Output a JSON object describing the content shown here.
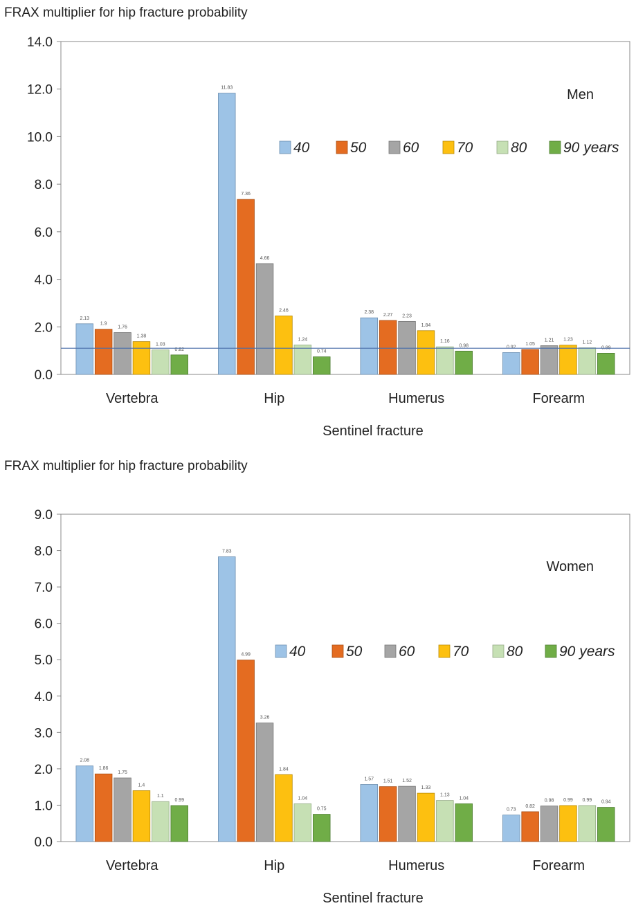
{
  "chart_data": [
    {
      "type": "bar",
      "title": "FRAX multiplier for hip fracture probability",
      "panel_label": "Men",
      "xlabel": "Sentinel fracture",
      "ylabel": "",
      "ylim": [
        0,
        14
      ],
      "yticks": [
        "0.0",
        "2.0",
        "4.0",
        "6.0",
        "8.0",
        "10.0",
        "12.0",
        "14.0"
      ],
      "reference_line": 1.1,
      "categories": [
        "Vertebra",
        "Hip",
        "Humerus",
        "Forearm"
      ],
      "series": [
        {
          "name": "40",
          "values": [
            2.13,
            11.83,
            2.38,
            0.92
          ]
        },
        {
          "name": "50",
          "values": [
            1.9,
            7.36,
            2.27,
            1.05
          ]
        },
        {
          "name": "60",
          "values": [
            1.76,
            4.66,
            2.23,
            1.21
          ]
        },
        {
          "name": "70",
          "values": [
            1.38,
            2.46,
            1.84,
            1.23
          ]
        },
        {
          "name": "80",
          "values": [
            1.03,
            1.24,
            1.16,
            1.12
          ]
        },
        {
          "name": "90 years",
          "values": [
            0.82,
            0.74,
            0.98,
            0.89
          ]
        }
      ],
      "data_labels": [
        [
          "2.13",
          "1.9",
          "1.76",
          "1.38",
          "1.03",
          "0.82"
        ],
        [
          "11.83",
          "7.36",
          "4.66",
          "2.46",
          "1.24",
          "0.74"
        ],
        [
          "2.38",
          "2.27",
          "2.23",
          "1.84",
          "1.16",
          "0.98"
        ],
        [
          "0.92",
          "1.05",
          "1.21",
          "1.23",
          "1.12",
          "0.89"
        ]
      ],
      "legend": {
        "placement": "upper-right"
      },
      "grid": false
    },
    {
      "type": "bar",
      "title": "FRAX multiplier for hip fracture probability",
      "panel_label": "Women",
      "xlabel": "Sentinel fracture",
      "ylabel": "",
      "ylim": [
        0,
        9
      ],
      "yticks": [
        "0.0",
        "1.0",
        "2.0",
        "3.0",
        "4.0",
        "5.0",
        "6.0",
        "7.0",
        "8.0",
        "9.0"
      ],
      "categories": [
        "Vertebra",
        "Hip",
        "Humerus",
        "Forearm"
      ],
      "series": [
        {
          "name": "40",
          "values": [
            2.08,
            7.83,
            1.57,
            0.73
          ]
        },
        {
          "name": "50",
          "values": [
            1.86,
            4.99,
            1.51,
            0.82
          ]
        },
        {
          "name": "60",
          "values": [
            1.75,
            3.26,
            1.52,
            0.98
          ]
        },
        {
          "name": "70",
          "values": [
            1.4,
            1.84,
            1.33,
            0.99
          ]
        },
        {
          "name": "80",
          "values": [
            1.1,
            1.04,
            1.13,
            0.99
          ]
        },
        {
          "name": "90 years",
          "values": [
            0.99,
            0.75,
            1.04,
            0.94
          ]
        }
      ],
      "data_labels": [
        [
          "2.08",
          "1.86",
          "1.75",
          "1.4",
          "1.1",
          "0.99"
        ],
        [
          "7.83",
          "4.99",
          "3.26",
          "1.84",
          "1.04",
          "0.75"
        ],
        [
          "1.57",
          "1.51",
          "1.52",
          "1.33",
          "1.13",
          "1.04"
        ],
        [
          "0.73",
          "0.82",
          "0.98",
          "0.99",
          "0.99",
          "0.94"
        ]
      ],
      "legend": {
        "placement": "upper-right"
      },
      "grid": false
    }
  ],
  "colors": {
    "series": [
      "#9dc3e6",
      "#e46c21",
      "#a5a5a5",
      "#fdc010",
      "#c6e0b4",
      "#70ad47"
    ],
    "bar_stroke": [
      "#6d8fb0",
      "#a94e14",
      "#767676",
      "#b88a05",
      "#93aa85",
      "#4e7d31"
    ],
    "axis": "#888888",
    "reference_line": "#4a6ea9"
  }
}
